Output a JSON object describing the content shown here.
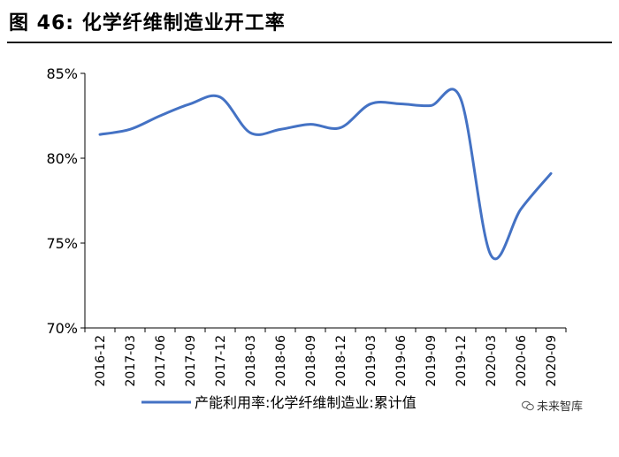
{
  "figure_title": "图 46: 化学纤维制造业开工率",
  "watermark": "未来智库",
  "watermark_icon": "wechat-icon",
  "chart_data": {
    "type": "line",
    "title": "",
    "xlabel": "",
    "ylabel": "",
    "categories": [
      "2016-12",
      "2017-03",
      "2017-06",
      "2017-09",
      "2017-12",
      "2018-03",
      "2018-06",
      "2018-09",
      "2018-12",
      "2019-03",
      "2019-06",
      "2019-09",
      "2019-12",
      "2020-03",
      "2020-06",
      "2020-09"
    ],
    "ylim": [
      70,
      85
    ],
    "yticks": [
      70,
      75,
      80,
      85
    ],
    "ytick_labels": [
      "70%",
      "75%",
      "80%",
      "85%"
    ],
    "series": [
      {
        "name": "产能利用率:化学纤维制造业:累计值",
        "color": "#4472C4",
        "values": [
          81.4,
          81.7,
          82.5,
          83.2,
          83.6,
          81.5,
          81.7,
          82.0,
          81.8,
          83.2,
          83.2,
          83.1,
          83.5,
          74.3,
          77.0,
          79.1
        ]
      }
    ],
    "legend_position": "bottom",
    "grid": false
  }
}
